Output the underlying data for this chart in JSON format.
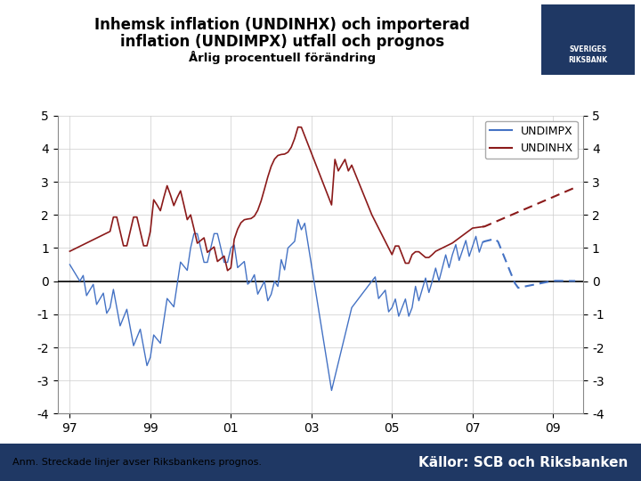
{
  "title_line1": "Inhemsk inflation (UNDINHX) och importerad",
  "title_line2": "inflation (UNDIMPX) utfall och prognos",
  "subtitle": "Årlig procentuell förändring",
  "footnote": "Anm. Streckade linjer avser Riksbankens prognos.",
  "source": "Källor: SCB och Riksbanken",
  "undimpx_color": "#4472C4",
  "undinhx_color": "#8B1A1A",
  "background_color": "#FFFFFF",
  "footer_bg_color": "#1F3864",
  "ylim": [
    -4,
    5
  ],
  "yticks": [
    -4,
    -3,
    -2,
    -1,
    0,
    1,
    2,
    3,
    4,
    5
  ],
  "xtick_positions": [
    1997,
    1999,
    2001,
    2003,
    2005,
    2007,
    2009
  ],
  "xtick_labels": [
    "97",
    "99",
    "01",
    "03",
    "05",
    "07",
    "09"
  ],
  "forecast_start_year": 2007.25,
  "legend_labels": [
    "UNDIMPX",
    "UNDINHX"
  ]
}
